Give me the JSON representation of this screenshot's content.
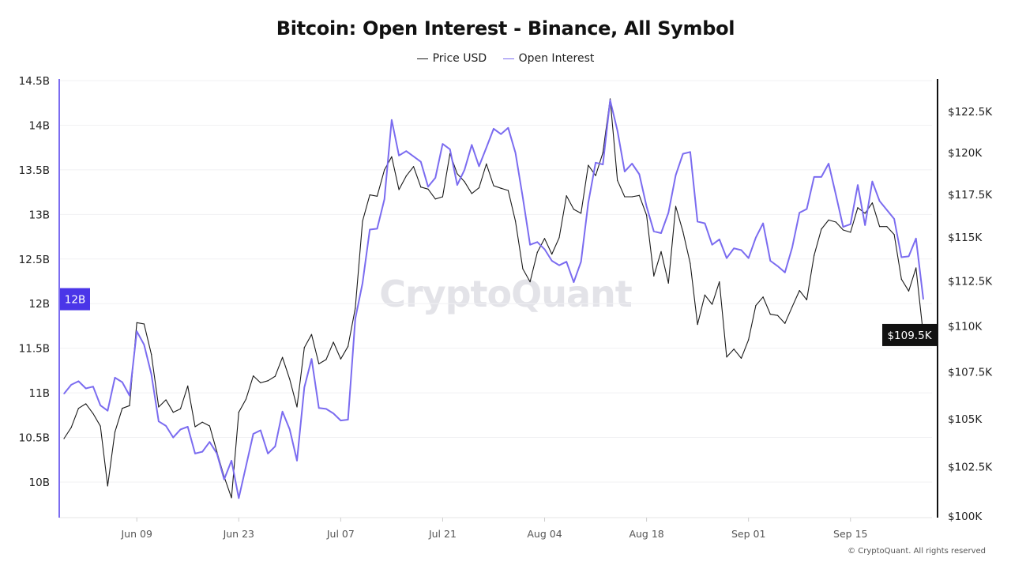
{
  "title": "Bitcoin: Open Interest - Binance, All Symbol",
  "watermark": "CryptoQuant",
  "footer": "© CryptoQuant. All rights reserved",
  "colors": {
    "price": "#1a1a1a",
    "open_interest": "#7b6cf0",
    "oi_highlight": "#4a35e8",
    "price_highlight": "#111111",
    "grid": "#f1f1f3"
  },
  "chart_data": {
    "type": "line",
    "title": "Bitcoin: Open Interest - Binance, All Symbol",
    "legend_position": "top-center",
    "grid": true,
    "x": [
      "May 30",
      "May 31",
      "Jun 01",
      "Jun 02",
      "Jun 03",
      "Jun 04",
      "Jun 05",
      "Jun 06",
      "Jun 07",
      "Jun 08",
      "Jun 09",
      "Jun 10",
      "Jun 11",
      "Jun 12",
      "Jun 13",
      "Jun 14",
      "Jun 15",
      "Jun 16",
      "Jun 17",
      "Jun 18",
      "Jun 19",
      "Jun 20",
      "Jun 21",
      "Jun 22",
      "Jun 23",
      "Jun 24",
      "Jun 25",
      "Jun 26",
      "Jun 27",
      "Jun 28",
      "Jun 29",
      "Jun 30",
      "Jul 01",
      "Jul 02",
      "Jul 03",
      "Jul 04",
      "Jul 05",
      "Jul 06",
      "Jul 07",
      "Jul 08",
      "Jul 09",
      "Jul 10",
      "Jul 11",
      "Jul 12",
      "Jul 13",
      "Jul 14",
      "Jul 15",
      "Jul 16",
      "Jul 17",
      "Jul 18",
      "Jul 19",
      "Jul 20",
      "Jul 21",
      "Jul 22",
      "Jul 23",
      "Jul 24",
      "Jul 25",
      "Jul 26",
      "Jul 27",
      "Jul 28",
      "Jul 29",
      "Jul 30",
      "Jul 31",
      "Aug 01",
      "Aug 02",
      "Aug 03",
      "Aug 04",
      "Aug 05",
      "Aug 06",
      "Aug 07",
      "Aug 08",
      "Aug 09",
      "Aug 10",
      "Aug 11",
      "Aug 12",
      "Aug 13",
      "Aug 14",
      "Aug 15",
      "Aug 16",
      "Aug 17",
      "Aug 18",
      "Aug 19",
      "Aug 20",
      "Aug 21",
      "Aug 22",
      "Aug 23",
      "Aug 24",
      "Aug 25",
      "Aug 26",
      "Aug 27",
      "Aug 28",
      "Aug 29",
      "Aug 30",
      "Aug 31",
      "Sep 01",
      "Sep 02",
      "Sep 03",
      "Sep 04",
      "Sep 05",
      "Sep 06",
      "Sep 07",
      "Sep 08",
      "Sep 09",
      "Sep 10",
      "Sep 11",
      "Sep 12",
      "Sep 13",
      "Sep 14",
      "Sep 15",
      "Sep 16",
      "Sep 17",
      "Sep 18",
      "Sep 19",
      "Sep 20",
      "Sep 21",
      "Sep 22",
      "Sep 23",
      "Sep 24",
      "Sep 25"
    ],
    "x_ticks": [
      "Jun 09",
      "Jun 23",
      "Jul 07",
      "Jul 21",
      "Aug 04",
      "Aug 18",
      "Sep 01",
      "Sep 15"
    ],
    "series": [
      {
        "name": "Price USD",
        "axis": "right",
        "unit": "K USD",
        "values": [
          103.96,
          104.54,
          105.55,
          105.79,
          105.27,
          104.61,
          101.52,
          104.3,
          105.55,
          105.69,
          110.18,
          110.11,
          108.45,
          105.62,
          106.0,
          105.34,
          105.52,
          106.74,
          104.58,
          104.82,
          104.62,
          103.27,
          101.99,
          100.92,
          105.34,
          106.04,
          107.28,
          106.91,
          107.02,
          107.26,
          108.28,
          107.1,
          105.62,
          108.81,
          109.53,
          107.93,
          108.16,
          109.11,
          108.19,
          108.88,
          110.98,
          115.93,
          117.47,
          117.39,
          118.95,
          119.74,
          117.78,
          118.59,
          119.15,
          117.93,
          117.81,
          117.23,
          117.36,
          119.93,
          118.72,
          118.25,
          117.55,
          117.89,
          119.31,
          118.01,
          117.86,
          117.73,
          115.93,
          113.2,
          112.46,
          114.14,
          114.93,
          114.03,
          114.98,
          117.42,
          116.62,
          116.39,
          119.23,
          118.61,
          119.98,
          123.27,
          118.33,
          117.36,
          117.36,
          117.44,
          116.28,
          112.79,
          114.18,
          112.39,
          116.8,
          115.32,
          113.5,
          110.08,
          111.72,
          111.2,
          112.46,
          108.3,
          108.73,
          108.23,
          109.24,
          111.13,
          111.61,
          110.65,
          110.58,
          110.14,
          111.06,
          111.97,
          111.45,
          113.96,
          115.47,
          116.0,
          115.88,
          115.42,
          115.29,
          116.72,
          116.39,
          117.0,
          115.62,
          115.62,
          115.16,
          112.61,
          111.94,
          113.25,
          109.5
        ]
      },
      {
        "name": "Open Interest",
        "axis": "left",
        "unit": "B",
        "values": [
          10.99,
          11.09,
          11.13,
          11.05,
          11.07,
          10.86,
          10.8,
          11.17,
          11.12,
          10.97,
          11.69,
          11.54,
          11.21,
          10.68,
          10.63,
          10.5,
          10.59,
          10.62,
          10.32,
          10.34,
          10.45,
          10.32,
          10.03,
          10.24,
          9.82,
          10.18,
          10.54,
          10.58,
          10.32,
          10.4,
          10.79,
          10.59,
          10.24,
          11.06,
          11.38,
          10.83,
          10.82,
          10.77,
          10.69,
          10.7,
          11.83,
          12.23,
          12.83,
          12.84,
          13.17,
          14.06,
          13.66,
          13.71,
          13.65,
          13.59,
          13.31,
          13.41,
          13.79,
          13.73,
          13.33,
          13.5,
          13.78,
          13.54,
          13.75,
          13.96,
          13.9,
          13.97,
          13.69,
          13.19,
          12.66,
          12.69,
          12.61,
          12.48,
          12.43,
          12.47,
          12.24,
          12.47,
          13.13,
          13.58,
          13.56,
          14.28,
          13.94,
          13.48,
          13.57,
          13.45,
          13.09,
          12.81,
          12.79,
          13.02,
          13.44,
          13.68,
          13.7,
          12.92,
          12.9,
          12.66,
          12.72,
          12.51,
          12.62,
          12.6,
          12.51,
          12.74,
          12.9,
          12.48,
          12.42,
          12.35,
          12.63,
          13.02,
          13.06,
          13.42,
          13.42,
          13.57,
          13.22,
          12.86,
          12.89,
          13.33,
          12.88,
          13.37,
          13.15,
          13.05,
          12.95,
          12.52,
          12.53,
          12.73,
          12.05
        ]
      }
    ],
    "left_axis": {
      "scale": "linear",
      "range": [
        9.6,
        14.5
      ],
      "ticks": [
        10,
        10.5,
        11,
        11.5,
        12,
        12.5,
        13,
        13.5,
        14,
        14.5
      ],
      "tick_labels": [
        "10B",
        "10.5B",
        "11B",
        "11.5B",
        "12B",
        "12.5B",
        "13B",
        "13.5B",
        "14B",
        "14.5B"
      ],
      "current_label": "12B"
    },
    "right_axis": {
      "scale": "log",
      "range": [
        100,
        124.5
      ],
      "ticks": [
        100,
        102.5,
        105,
        107.5,
        110,
        112.5,
        115,
        117.5,
        120,
        122.5
      ],
      "tick_labels": [
        "$100K",
        "$102.5K",
        "$105K",
        "$107.5K",
        "$110K",
        "$112.5K",
        "$115K",
        "$117.5K",
        "$120K",
        "$122.5K"
      ],
      "current_label": "$109.5K"
    }
  }
}
